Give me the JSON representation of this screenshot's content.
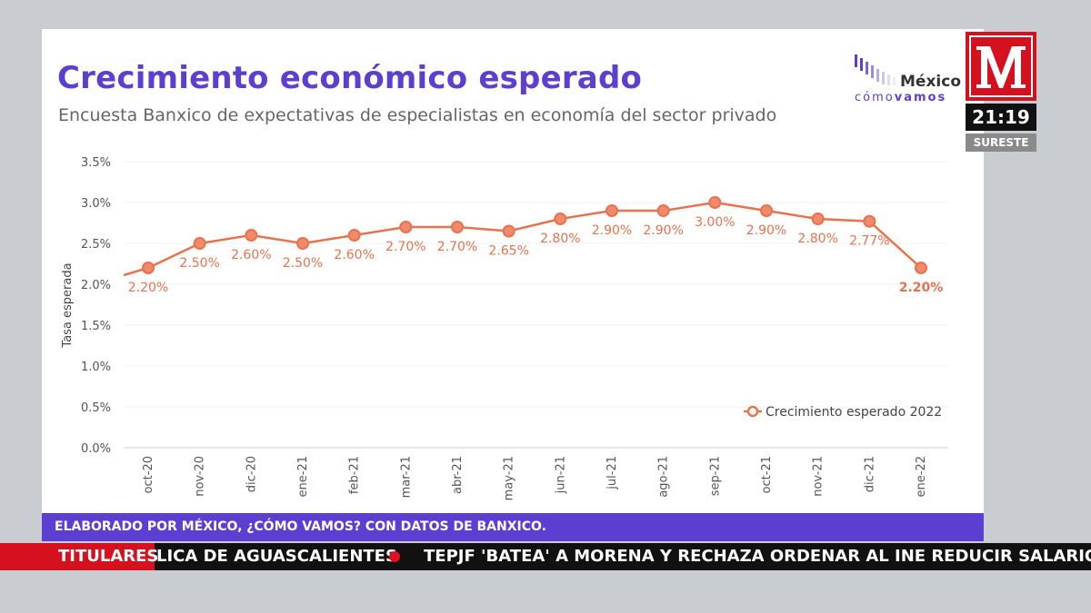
{
  "header": {
    "title": "Crecimiento económico esperado",
    "subtitle": "Encuesta Banxico de expectativas de especialistas en economía del sector privado"
  },
  "logo": {
    "name": "México",
    "tagline_a": "cómo",
    "tagline_b": "vamos"
  },
  "footer": {
    "text": "ELABORADO POR MÉXICO, ¿CÓMO VAMOS? CON DATOS DE BANXICO."
  },
  "channel": {
    "clock": "21:19",
    "region": "SURESTE"
  },
  "ticker": {
    "label": "TITULARES",
    "item1": "LICA DE AGUASCALIENTES",
    "item2": "TEPJF 'BATEA' A MORENA Y RECHAZA ORDENAR AL INE REDUCIR SALARIOS DE CONS"
  },
  "colors": {
    "accent": "#5c3fd0",
    "line": "#e8724f",
    "brand_red": "#d6111f"
  },
  "chart_data": {
    "type": "line",
    "title": "Crecimiento económico esperado",
    "xlabel": "",
    "ylabel": "Tasa esperada",
    "categories": [
      "oct-20",
      "nov-20",
      "dic-20",
      "ene-21",
      "feb-21",
      "mar-21",
      "abr-21",
      "may-21",
      "jun-21",
      "jul-21",
      "ago-21",
      "sep-21",
      "oct-21",
      "nov-21",
      "dic-21",
      "ene-22"
    ],
    "series": [
      {
        "name": "Crecimiento esperado 2022",
        "values": [
          2.2,
          2.5,
          2.6,
          2.5,
          2.6,
          2.7,
          2.7,
          2.65,
          2.8,
          2.9,
          2.9,
          3.0,
          2.9,
          2.8,
          2.77,
          2.2
        ],
        "labels": [
          "2.20%",
          "2.50%",
          "2.60%",
          "2.50%",
          "2.60%",
          "2.70%",
          "2.70%",
          "2.65%",
          "2.80%",
          "2.90%",
          "2.90%",
          "3.00%",
          "2.90%",
          "2.80%",
          "2.77%",
          "2.20%"
        ]
      }
    ],
    "yticks": [
      "0.0%",
      "0.5%",
      "1.0%",
      "1.5%",
      "2.0%",
      "2.5%",
      "3.0%",
      "3.5%"
    ],
    "ylim": [
      0,
      3.5
    ],
    "legend": "right"
  }
}
